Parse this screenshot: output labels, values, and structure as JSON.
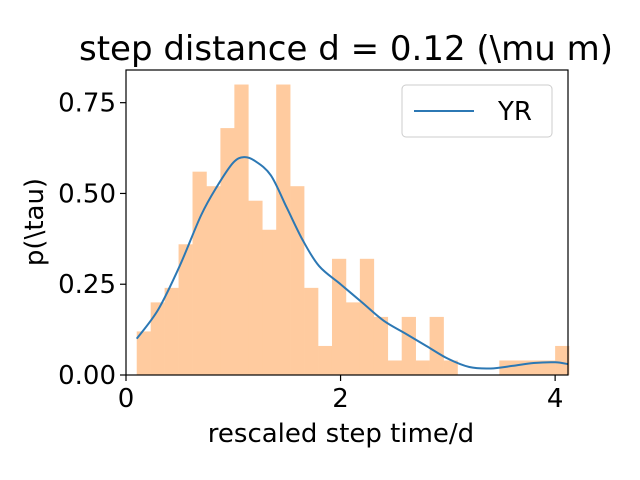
{
  "chart_data": {
    "type": "histogram+line",
    "title": "step distance d = 0.12 (\\mu m)",
    "xlabel": "rescaled step time/d",
    "ylabel": "p(\\tau)",
    "xlim": [
      0,
      4.12
    ],
    "ylim": [
      0,
      0.84
    ],
    "xticks": [
      "0",
      "2",
      "4"
    ],
    "yticks": [
      "0.00",
      "0.25",
      "0.50",
      "0.75"
    ],
    "grid": false,
    "legend_position": "top-right",
    "colors": {
      "bars": "#ffcb9f",
      "line": "#2c78b4",
      "axes": "#000000"
    },
    "histogram": {
      "bin_width": 0.13,
      "bins": [
        {
          "x": 0.1,
          "height": 0.12
        },
        {
          "x": 0.23,
          "height": 0.2
        },
        {
          "x": 0.36,
          "height": 0.24
        },
        {
          "x": 0.49,
          "height": 0.36
        },
        {
          "x": 0.62,
          "height": 0.56
        },
        {
          "x": 0.75,
          "height": 0.52
        },
        {
          "x": 0.88,
          "height": 0.68
        },
        {
          "x": 1.01,
          "height": 0.8
        },
        {
          "x": 1.14,
          "height": 0.48
        },
        {
          "x": 1.27,
          "height": 0.4
        },
        {
          "x": 1.4,
          "height": 0.8
        },
        {
          "x": 1.53,
          "height": 0.52
        },
        {
          "x": 1.66,
          "height": 0.24
        },
        {
          "x": 1.79,
          "height": 0.08
        },
        {
          "x": 1.92,
          "height": 0.32
        },
        {
          "x": 2.05,
          "height": 0.2
        },
        {
          "x": 2.18,
          "height": 0.32
        },
        {
          "x": 2.31,
          "height": 0.16
        },
        {
          "x": 2.44,
          "height": 0.04
        },
        {
          "x": 2.57,
          "height": 0.16
        },
        {
          "x": 2.7,
          "height": 0.04
        },
        {
          "x": 2.83,
          "height": 0.16
        },
        {
          "x": 2.96,
          "height": 0.04
        },
        {
          "x": 3.09,
          "height": 0.0
        },
        {
          "x": 3.22,
          "height": 0.0
        },
        {
          "x": 3.35,
          "height": 0.0
        },
        {
          "x": 3.48,
          "height": 0.04
        },
        {
          "x": 3.61,
          "height": 0.04
        },
        {
          "x": 3.74,
          "height": 0.04
        },
        {
          "x": 3.87,
          "height": 0.04
        },
        {
          "x": 4.0,
          "height": 0.08
        }
      ]
    },
    "series": [
      {
        "name": "YR",
        "x": [
          0.1,
          0.3,
          0.5,
          0.7,
          0.85,
          1.0,
          1.1,
          1.2,
          1.35,
          1.5,
          1.65,
          1.8,
          2.0,
          2.2,
          2.4,
          2.6,
          2.8,
          3.0,
          3.2,
          3.4,
          3.6,
          3.8,
          4.0,
          4.12
        ],
        "y": [
          0.1,
          0.18,
          0.3,
          0.44,
          0.52,
          0.585,
          0.6,
          0.59,
          0.55,
          0.46,
          0.37,
          0.3,
          0.25,
          0.2,
          0.15,
          0.115,
          0.08,
          0.045,
          0.022,
          0.018,
          0.025,
          0.033,
          0.035,
          0.03
        ]
      }
    ]
  }
}
